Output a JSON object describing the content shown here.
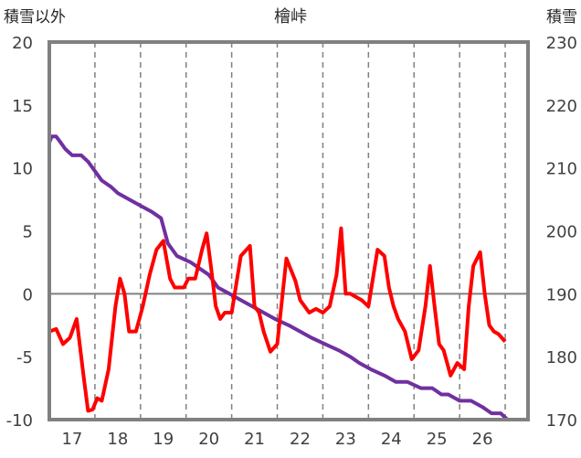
{
  "chart_data": {
    "type": "line",
    "title": "檜峠",
    "y_left_label": "積雪以外",
    "y_right_label": "積雪",
    "y_left_lim": [
      -10,
      20
    ],
    "y_left_ticks": [
      "20",
      "15",
      "10",
      "5",
      "0",
      "-5",
      "-10"
    ],
    "y_right_lim": [
      170,
      230
    ],
    "y_right_ticks": [
      "230",
      "220",
      "210",
      "200",
      "190",
      "180",
      "170"
    ],
    "x_lim": [
      16.5,
      27.0
    ],
    "x_ticks": [
      "17",
      "18",
      "19",
      "20",
      "21",
      "22",
      "23",
      "24",
      "25",
      "26"
    ],
    "grid": "dashed vertical at day boundaries",
    "colors": {
      "temperature": "#ff0000",
      "snow_depth": "#7030a0",
      "frame": "#808080",
      "zero_line": "#808080"
    },
    "series": [
      {
        "axis": "left",
        "color": "#ff0000",
        "x": [
          16.5,
          16.65,
          16.8,
          16.95,
          17.1,
          17.25,
          17.35,
          17.45,
          17.55,
          17.65,
          17.8,
          17.95,
          18.05,
          18.15,
          18.25,
          18.4,
          18.55,
          18.7,
          18.85,
          19.0,
          19.15,
          19.25,
          19.35,
          19.45,
          19.55,
          19.7,
          19.85,
          19.95,
          20.05,
          20.15,
          20.25,
          20.35,
          20.5,
          20.7,
          20.9,
          21.0,
          21.1,
          21.2,
          21.35,
          21.5,
          21.7,
          21.9,
          22.0,
          22.1,
          22.2,
          22.35,
          22.5,
          22.65,
          22.8,
          22.9,
          23.0,
          23.1,
          23.2,
          23.35,
          23.5,
          23.7,
          23.85,
          23.95,
          24.05,
          24.15,
          24.3,
          24.45,
          24.6,
          24.75,
          24.85,
          24.95,
          25.05,
          25.15,
          25.3,
          25.45,
          25.6,
          25.7,
          25.8,
          25.95,
          26.05,
          26.15,
          26.25,
          26.35,
          26.5
        ],
        "values": [
          -3,
          -2.8,
          -4,
          -3.5,
          -2,
          -6.5,
          -9.3,
          -9.2,
          -8.3,
          -8.5,
          -6,
          -1,
          1.2,
          0,
          -3,
          -3,
          -1,
          1.5,
          3.5,
          4.2,
          1.2,
          0.5,
          0.5,
          0.5,
          1.2,
          1.2,
          3.5,
          4.8,
          2,
          -1,
          -2,
          -1.5,
          -1.5,
          3,
          3.8,
          -1,
          -1.5,
          -3,
          -4.6,
          -4,
          2.8,
          1,
          -0.5,
          -1,
          -1.5,
          -1.2,
          -1.5,
          -1,
          1.5,
          5.2,
          0,
          0,
          -0.2,
          -0.5,
          -1,
          3.5,
          3,
          0.5,
          -1,
          -2,
          -3,
          -5.2,
          -4.5,
          -1,
          2.2,
          -1,
          -4,
          -4.5,
          -6.5,
          -5.5,
          -6,
          -1,
          2.2,
          3.3,
          0,
          -2.5,
          -3,
          -3.2,
          -3.8
        ]
      },
      {
        "axis": "right",
        "color": "#7030a0",
        "x": [
          16.5,
          16.55,
          16.65,
          16.75,
          16.85,
          17.0,
          17.2,
          17.35,
          17.45,
          17.55,
          17.65,
          17.75,
          17.85,
          18.0,
          18.25,
          18.5,
          18.75,
          18.95,
          19.1,
          19.3,
          19.6,
          19.8,
          20.0,
          20.2,
          20.45,
          20.7,
          20.95,
          21.2,
          21.45,
          21.75,
          22.0,
          22.25,
          22.55,
          22.85,
          23.1,
          23.3,
          23.55,
          23.85,
          24.1,
          24.35,
          24.65,
          24.9,
          25.0,
          25.1,
          25.25,
          25.5,
          25.75,
          26.0,
          26.2,
          26.4,
          26.55
        ],
        "values": [
          214,
          215,
          215,
          214,
          213,
          212,
          212,
          211,
          210,
          209,
          208,
          207.5,
          207,
          206,
          205,
          204,
          203,
          202,
          198,
          196,
          195,
          194,
          193,
          191,
          190,
          189,
          188,
          187,
          186,
          185,
          184,
          183,
          182,
          181,
          180,
          179,
          178,
          177,
          176,
          176,
          175,
          175,
          174.5,
          174,
          174,
          173,
          173,
          172,
          171,
          171,
          170
        ]
      }
    ]
  }
}
